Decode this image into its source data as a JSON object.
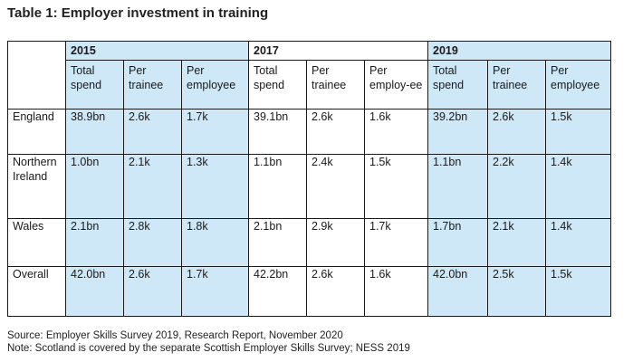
{
  "title": "Table 1: Employer investment in training",
  "table": {
    "years": [
      "2015",
      "2017",
      "2019"
    ],
    "subheaders": [
      "Total spend",
      "Per trainee",
      "Per employee",
      "Total spend",
      "Per trainee",
      "Per employ-ee",
      "Total spend",
      "Per trainee",
      "Per employee"
    ],
    "rows": [
      {
        "label": "England",
        "values": [
          "38.9bn",
          "2.6k",
          "1.7k",
          "39.1bn",
          "2.6k",
          "1.6k",
          "39.2bn",
          "2.6k",
          "1.5k"
        ]
      },
      {
        "label": "Northern Ireland",
        "values": [
          "1.0bn",
          "2.1k",
          "1.3k",
          "1.1bn",
          "2.4k",
          "1.5k",
          "1.1bn",
          "2.2k",
          "1.4k"
        ]
      },
      {
        "label": "Wales",
        "values": [
          "2.1bn",
          "2.8k",
          "1.8k",
          "2.1bn",
          "2.9k",
          "1.7k",
          "1.7bn",
          "2.1k",
          "1.4k"
        ]
      },
      {
        "label": "Overall",
        "values": [
          "42.0bn",
          "2.6k",
          "1.7k",
          "42.2bn",
          "2.6k",
          "1.6k",
          "42.0bn",
          "2.5k",
          "1.5k"
        ]
      }
    ]
  },
  "source": "Source: Employer Skills Survey 2019, Research Report, November 2020",
  "note": "Note: Scotland is covered by the separate Scottish Employer Skills Survey; NESS 2019",
  "colors": {
    "highlight": "#cfe8f8",
    "border": "#1a1a1a"
  }
}
